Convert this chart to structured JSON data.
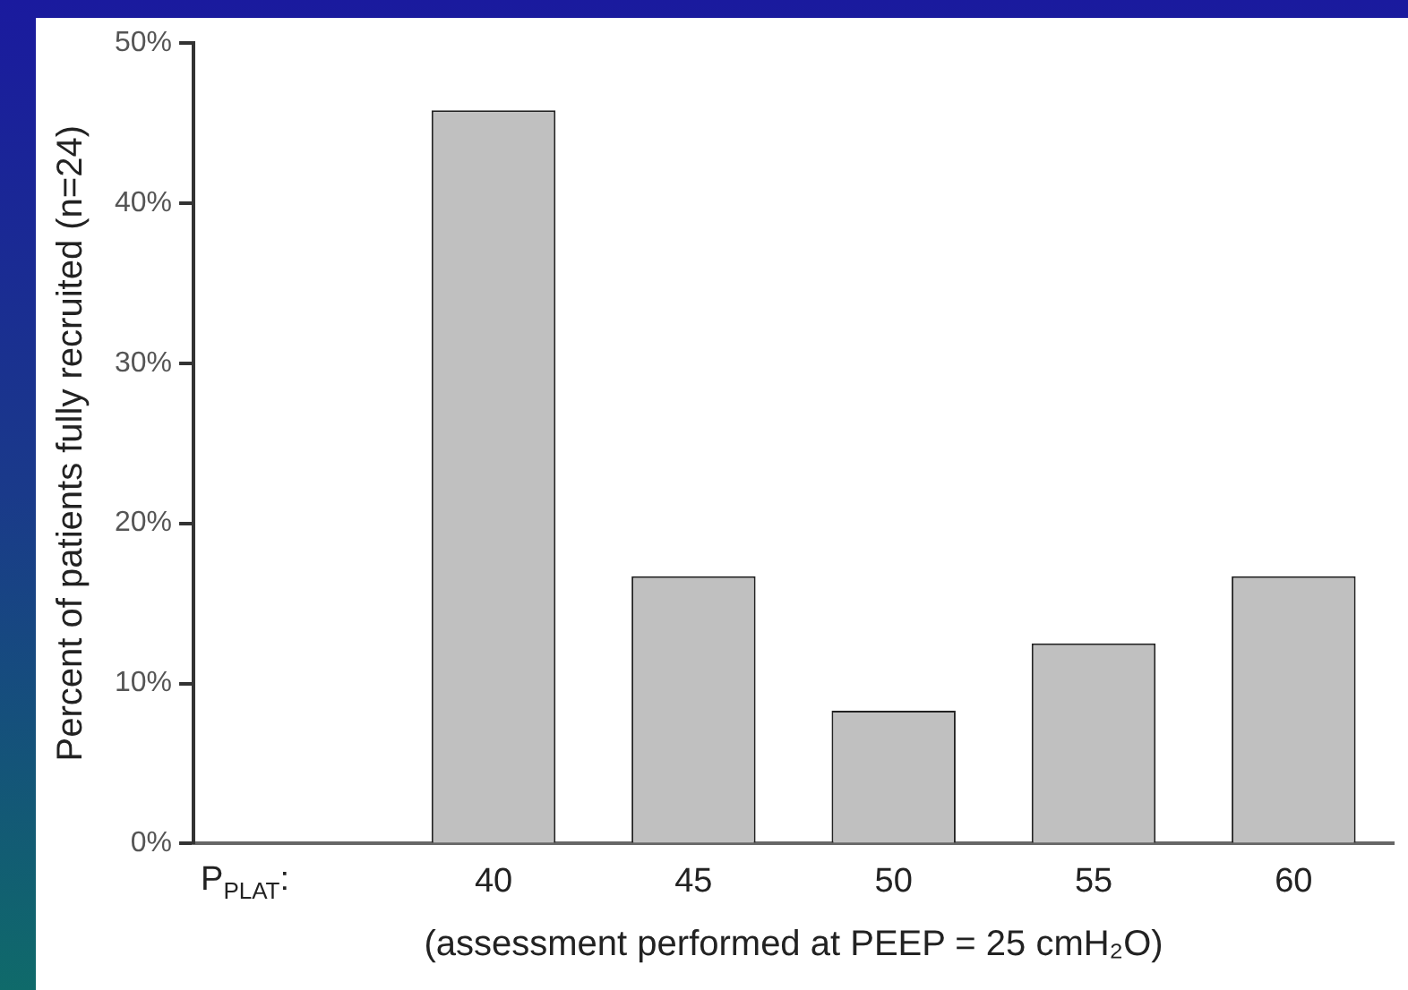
{
  "chart_data": {
    "type": "bar",
    "xlabel": "(assessment performed at PEEP = 25 cmH₂O)",
    "ylabel": "Percent of patients fully recruited (n=24)",
    "categories": [
      null,
      "40",
      "45",
      "50",
      "55",
      "60"
    ],
    "values": [
      null,
      45.8,
      16.7,
      8.3,
      12.5,
      16.7
    ],
    "color": "#c0c0c0",
    "ylim": [
      0,
      50
    ],
    "yticks": [
      {
        "value": 0,
        "label": "0%"
      },
      {
        "value": 10,
        "label": "10%"
      },
      {
        "value": 20,
        "label": "20%"
      },
      {
        "value": 30,
        "label": "30%"
      },
      {
        "value": 40,
        "label": "40%"
      },
      {
        "value": 50,
        "label": "50%"
      }
    ],
    "annotations": [
      {
        "text": "P$_{PLAT}$:"
      }
    ],
    "grid": false,
    "legend": false
  }
}
